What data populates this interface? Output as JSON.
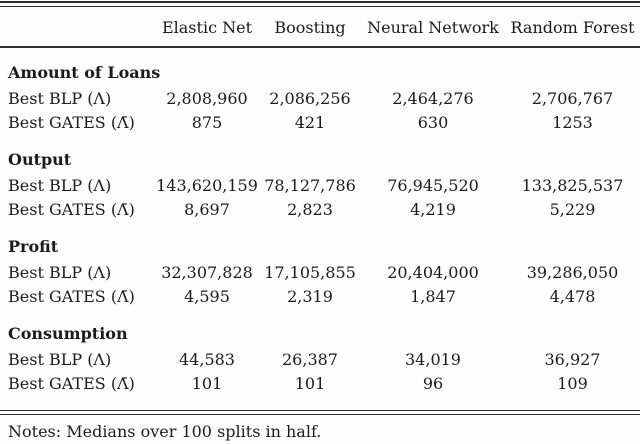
{
  "table": {
    "columns": [
      "Elastic Net",
      "Boosting",
      "Neural Network",
      "Random Forest"
    ],
    "row_label_blp": "Best BLP (Λ)",
    "row_label_gates": "Best GATES (Λ̄)",
    "sections": [
      {
        "name": "Amount of Loans",
        "blp": [
          "2,808,960",
          "2,086,256",
          "2,464,276",
          "2,706,767"
        ],
        "gates": [
          "875",
          "421",
          "630",
          "1253"
        ]
      },
      {
        "name": "Output",
        "blp": [
          "143,620,159",
          "78,127,786",
          "76,945,520",
          "133,825,537"
        ],
        "gates": [
          "8,697",
          "2,823",
          "4,219",
          "5,229"
        ]
      },
      {
        "name": "Profit",
        "blp": [
          "32,307,828",
          "17,105,855",
          "20,404,000",
          "39,286,050"
        ],
        "gates": [
          "4,595",
          "2,319",
          "1,847",
          "4,478"
        ]
      },
      {
        "name": "Consumption",
        "blp": [
          "44,583",
          "26,387",
          "34,019",
          "36,927"
        ],
        "gates": [
          "101",
          "101",
          "96",
          "109"
        ]
      }
    ],
    "notes": "Notes: Medians over 100 splits in half."
  }
}
